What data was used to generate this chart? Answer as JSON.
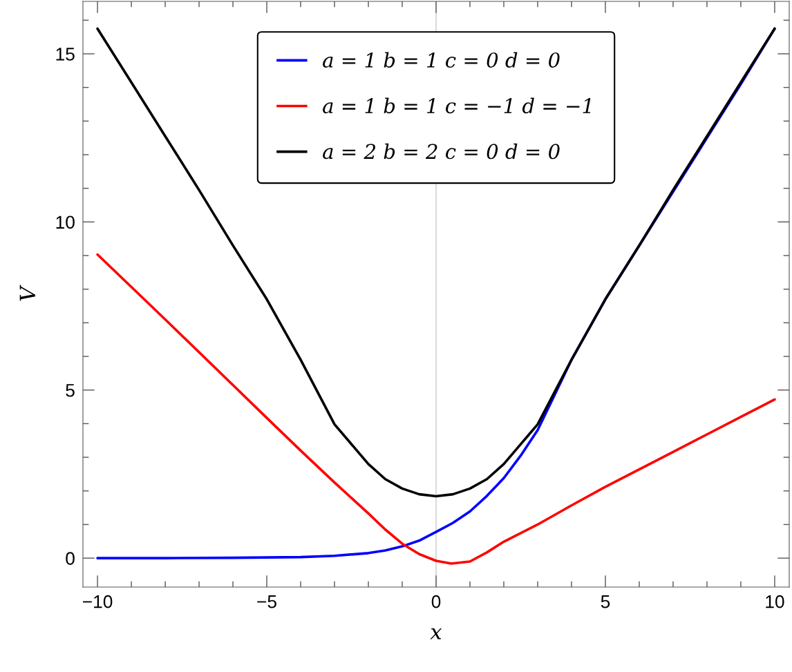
{
  "chart_data": {
    "type": "line",
    "xlabel": "x",
    "ylabel": "V",
    "xlim": [
      -10.43,
      10.43
    ],
    "ylim": [
      -0.86,
      16.56
    ],
    "xticks": [
      {
        "value": -10,
        "label": "−10"
      },
      {
        "value": -9,
        "label": null
      },
      {
        "value": -8,
        "label": null
      },
      {
        "value": -7,
        "label": null
      },
      {
        "value": -6,
        "label": null
      },
      {
        "value": -5,
        "label": "−5"
      },
      {
        "value": -4,
        "label": null
      },
      {
        "value": -3,
        "label": null
      },
      {
        "value": -2,
        "label": null
      },
      {
        "value": -1,
        "label": null
      },
      0,
      {
        "value": 1,
        "label": null
      },
      {
        "value": 2,
        "label": null
      },
      {
        "value": 3,
        "label": null
      },
      {
        "value": 4,
        "label": null
      },
      5,
      {
        "value": 6,
        "label": null
      },
      {
        "value": 7,
        "label": null
      },
      {
        "value": 8,
        "label": null
      },
      {
        "value": 9,
        "label": null
      },
      10
    ],
    "yticks": [
      0,
      {
        "value": 1,
        "label": null
      },
      {
        "value": 2,
        "label": null
      },
      {
        "value": 3,
        "label": null
      },
      {
        "value": 4,
        "label": null
      },
      5,
      {
        "value": 6,
        "label": null
      },
      {
        "value": 7,
        "label": null
      },
      {
        "value": 8,
        "label": null
      },
      {
        "value": 9,
        "label": null
      },
      10,
      {
        "value": 11,
        "label": null
      },
      {
        "value": 12,
        "label": null
      },
      {
        "value": 13,
        "label": null
      },
      {
        "value": 14,
        "label": null
      },
      15,
      {
        "value": 16,
        "label": null
      }
    ],
    "ref_lines": [
      {
        "axis": "x",
        "value": 0,
        "color": "#d3d3d3"
      }
    ],
    "legend": "top",
    "grid": false,
    "marker": "none",
    "line_style": "solid",
    "series": [
      {
        "name": "a = 1 b = 1 c = 0 d = 0",
        "color": "#0000ff",
        "x": [
          -10,
          -8,
          -6,
          -5,
          -4,
          -3,
          -2,
          -1.5,
          -1,
          -0.5,
          0,
          0.5,
          1,
          1.5,
          2,
          2.5,
          3,
          3.5,
          4,
          5,
          6,
          7,
          8,
          9,
          10
        ],
        "values": [
          0,
          0,
          0.01,
          0.02,
          0.03,
          0.07,
          0.15,
          0.23,
          0.35,
          0.52,
          0.78,
          1.05,
          1.39,
          1.85,
          2.38,
          3.05,
          3.81,
          4.85,
          5.9,
          7.7,
          9.3,
          10.9,
          12.5,
          14.1,
          15.75
        ]
      },
      {
        "name": "a = 1 b = 1 c = −1 d = −1",
        "color": "#ff0000",
        "x": [
          -10,
          -8,
          -6,
          -5,
          -4,
          -3,
          -2,
          -1.5,
          -1,
          -0.5,
          0,
          0.45,
          1,
          1.5,
          2,
          3,
          4,
          5,
          6,
          7,
          8,
          9,
          10
        ],
        "values": [
          9.03,
          7.1,
          5.15,
          4.17,
          3.2,
          2.25,
          1.33,
          0.85,
          0.43,
          0.12,
          -0.08,
          -0.16,
          -0.1,
          0.17,
          0.49,
          1.0,
          1.57,
          2.12,
          2.64,
          3.16,
          3.68,
          4.2,
          4.72
        ]
      },
      {
        "name": "a = 2 b = 2 c = 0 d = 0",
        "color": "#000000",
        "x": [
          -10,
          -9,
          -8,
          -7,
          -6,
          -5,
          -4,
          -3,
          -2,
          -1.5,
          -1,
          -0.5,
          0,
          0.5,
          1,
          1.5,
          2,
          3,
          4,
          5,
          6,
          7,
          8,
          9,
          10
        ],
        "values": [
          15.75,
          14.15,
          12.55,
          10.95,
          9.3,
          7.7,
          5.9,
          3.98,
          2.8,
          2.35,
          2.07,
          1.9,
          1.84,
          1.9,
          2.07,
          2.35,
          2.8,
          3.98,
          5.9,
          7.7,
          9.3,
          10.95,
          12.55,
          14.15,
          15.75
        ]
      }
    ]
  }
}
